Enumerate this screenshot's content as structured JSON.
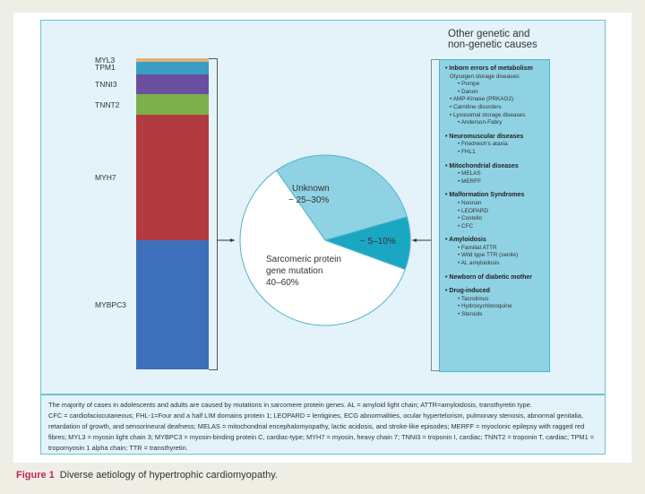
{
  "chart_data": {
    "type": "pie",
    "stacked_bar": {
      "segments": [
        {
          "label": "MYL3",
          "color": "#e3b37a",
          "share": 1
        },
        {
          "label": "TPM1",
          "color": "#3a9dc2",
          "share": 4
        },
        {
          "label": "TNNI3",
          "color": "#6a4fa1",
          "share": 6.5
        },
        {
          "label": "TNNT2",
          "color": "#7bb04a",
          "share": 6.5
        },
        {
          "label": "MYH7",
          "color": "#b33a3e",
          "share": 40
        },
        {
          "label": "MYBPC3",
          "color": "#3e6fba",
          "share": 41
        }
      ]
    },
    "pie": {
      "slices": [
        {
          "name": "Unknown",
          "label": "~ 25–30%",
          "start_deg": 325,
          "end_deg": 74,
          "color": "#8fd2e3"
        },
        {
          "name": "Other",
          "label": "~ 5–10%",
          "start_deg": 74,
          "end_deg": 110,
          "color": "#1aa7c4"
        },
        {
          "name": "Sarcomeric protein gene mutation",
          "label": "40–60%",
          "start_deg": 110,
          "end_deg": 325,
          "color": "#ffffff"
        }
      ],
      "sarcomeric_line1": "Sarcomeric protein",
      "sarcomeric_line2": "gene mutation"
    }
  },
  "other_causes": {
    "title_line1": "Other genetic and",
    "title_line2": "non-genetic causes",
    "groups": [
      {
        "heading": "• Inborn errors of metabolism",
        "items": [
          {
            "level": 1,
            "text": "Glycogen storage diseases:"
          },
          {
            "level": 2,
            "text": "• Pompe"
          },
          {
            "level": 2,
            "text": "• Danon"
          },
          {
            "level": 1,
            "text": "• AMP-Kinase (PRKAG2)"
          },
          {
            "level": 1,
            "text": "• Carnitine disorders"
          },
          {
            "level": 1,
            "text": "• Lysosomal storage diseases"
          },
          {
            "level": 2,
            "text": "• Anderson-Fabry"
          }
        ]
      },
      {
        "heading": "• Neuromuscular diseases",
        "items": [
          {
            "level": 2,
            "text": "• Friedreich's ataxia"
          },
          {
            "level": 2,
            "text": "• FHL1"
          }
        ]
      },
      {
        "heading": "• Mitochondrial diseases",
        "items": [
          {
            "level": 2,
            "text": "• MELAS"
          },
          {
            "level": 2,
            "text": "• MERFF"
          }
        ]
      },
      {
        "heading": "• Malformation Syndromes",
        "items": [
          {
            "level": 2,
            "text": "• Noonan"
          },
          {
            "level": 2,
            "text": "• LEOPARD"
          },
          {
            "level": 2,
            "text": "• Costello"
          },
          {
            "level": 2,
            "text": "• CFC"
          }
        ]
      },
      {
        "heading": "• Amyloidosis",
        "items": [
          {
            "level": 2,
            "text": "• Familial ATTR"
          },
          {
            "level": 2,
            "text": "• Wild type TTR (senile)"
          },
          {
            "level": 2,
            "text": "• AL amyloidosis"
          }
        ]
      },
      {
        "heading": "• Newborn of diabetic mother",
        "items": []
      },
      {
        "heading": "• Drug-induced",
        "items": [
          {
            "level": 2,
            "text": "• Tacrolimus"
          },
          {
            "level": 2,
            "text": "• Hydroxychloroquine"
          },
          {
            "level": 2,
            "text": "• Steroids"
          }
        ]
      }
    ]
  },
  "legend_text": [
    "The majority of cases in adolescents and adults are caused by mutations in sarcomere protein genes. AL = amyloid light chain; ATTR=amyloidosis, transthyretin type.",
    "CFC = cardiofaciocutaneous; FHL-1=Four and a half LIM domains protein 1; LEOPARD = lentigines, ECG abnormalities, ocular hypertelorism, pulmonary stenosis, abnormal genitalia, retardation of growth, and sensorineural deafness; MELAS = mitochondrial encephalomyopathy, lactic acidosis, and stroke-like episodes; MERFF = myoclonic epilepsy with ragged red fibres; MYL3 = myosin light chain 3; MYBPC3 = myosin-binding protein C, cardiac-type; MYH7 = myosin, heavy chain 7; TNNI3 = troponin I, cardiac; TNNT2 = troponin T, cardiac; TPM1 = tropomyosin 1 alpha chain; TTR = transthyretin."
  ],
  "caption": {
    "label": "Figure 1",
    "text": "Diverse aetiology of hypertrophic cardiomyopathy."
  }
}
